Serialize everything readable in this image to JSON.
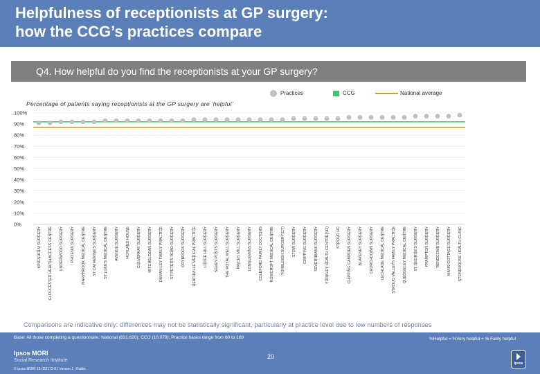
{
  "header": {
    "title_line1": "Helpfulness of receptionists at GP surgery:",
    "title_line2": "how the CCG’s practices compare"
  },
  "question": {
    "text": "Q4. How helpful do you find the receptionists at your GP surgery?"
  },
  "legend": {
    "practices": "Practices",
    "ccg": "CCG",
    "national": "National average"
  },
  "footnote": "Comparisons are indicative only: differences may not be statistically significant, particularly at practice level due to low numbers of responses",
  "footer": {
    "base": "Base: All those completing a questionnaire: National (831,620); CCG (10,079); Practice bases range from 60 to 169",
    "helpful_def": "%Helpful = %Very helpful + % Fairly helpful",
    "logo_name": "Ipsos MORI",
    "logo_sub": "Social Research Institute",
    "copyright": "© Ipsos MORI     15-032172-01 Version 1 | Public",
    "page_number": "20",
    "ipsos_logo_text": "Ipsos"
  },
  "colors": {
    "title_bar": "#5b7fb8",
    "practice_dot": "#c0c0c0",
    "ccg": "#33cc66",
    "national": "#d4a017"
  },
  "chart_data": {
    "type": "scatter",
    "title": "Percentage of patients saying receptionists at the GP surgery are ‘helpful’",
    "ylim": [
      0,
      100
    ],
    "yticks": [
      "0%",
      "10%",
      "20%",
      "30%",
      "40%",
      "50%",
      "60%",
      "70%",
      "80%",
      "90%",
      "100%"
    ],
    "categories": [
      "KINGSHOLM SURGERY",
      "GLOUCESTER HEALTH ACCESS CENTRE",
      "UNDERWOOD SURGERY",
      "PHOENIX SURGERY",
      "MARYBROOK MEDICAL CENTRE",
      "ST CATHERINE'S SURGERY",
      "ST LUKE'S MEDICAL CENTRE",
      "AVENUE SURGERY",
      "HOYLAND HOUSE",
      "CULVERHAY SURGERY",
      "MITCHELDEAN SURGERY",
      "DAMAN-LEY FAMILY PRACTICE",
      "ST PETER'S ROAD SURGERY",
      "DRYBROOK SURGERY",
      "HEATHVILLE MEDICAL PRACTICE",
      "LODGE HILL SURGERY",
      "SEVEN POSTS SURGERY",
      "THE ROYAL WELL SURGERY",
      "PRICES MILL SURGERY",
      "LONGLEVENS SURGERY",
      "COLEFORD FAMILY DOCTORS",
      "ROWCROFT MEDICAL CENTRE",
      "YORKLEIGH SURGERY(CT)",
      "STOW SURGERY",
      "CHIPPING SURGERY",
      "SEVERNBANK SURGERY",
      "YORKLEY HEALTH CENTRE(NO)",
      "STROUD HC",
      "CHIPPING CAMPDEN SURGERY",
      "BLAKENEY SURGERY",
      "CHURCHDOWN SURGERY",
      "LECHLADE MEDICAL CENTRE",
      "STROUD VALLEYS FAMILY PRACTICE",
      "QUEDGELEY MEDICAL CENTRE",
      "ST GEORGE'S SURGERY",
      "FRAMPTON SURGERY",
      "RENDCOMB SURGERY",
      "MANN COTTAGE SURGERY",
      "STONEHOUSE HEALTH CLINIC"
    ],
    "series": [
      {
        "name": "Practices",
        "type": "scatter",
        "values": [
          91,
          91,
          92,
          92,
          92,
          92,
          93,
          93,
          93,
          93,
          93,
          93,
          93,
          93,
          94,
          94,
          94,
          94,
          94,
          94,
          94,
          94,
          94,
          95,
          95,
          95,
          95,
          95,
          96,
          96,
          96,
          96,
          96,
          96,
          97,
          97,
          97,
          97,
          98
        ]
      },
      {
        "name": "CCG",
        "type": "line",
        "value": 92
      },
      {
        "name": "National average",
        "type": "line",
        "value": 87
      }
    ]
  }
}
